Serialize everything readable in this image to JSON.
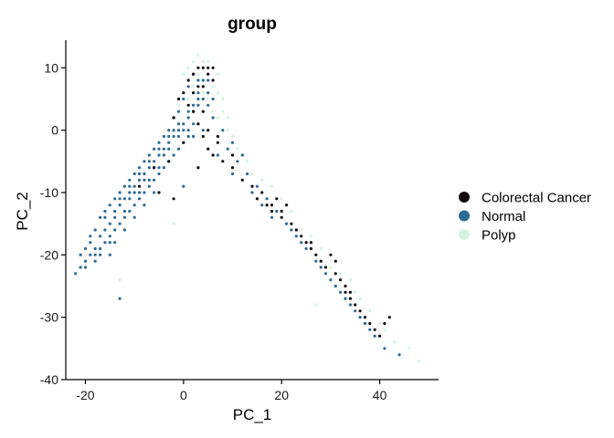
{
  "chart_data": {
    "type": "scatter",
    "title": "group",
    "xlabel": "PC_1",
    "ylabel": "PC_2",
    "xlim": [
      -24,
      52
    ],
    "ylim": [
      -40,
      14
    ],
    "x_ticks": [
      -20,
      0,
      20,
      40
    ],
    "y_ticks": [
      10,
      0,
      -10,
      -20,
      -30,
      -40
    ],
    "grid": false,
    "legend_position": "right",
    "series": [
      {
        "name": "Colorectal Cancer",
        "color": "#140b0e",
        "points": [
          [
            1,
            8
          ],
          [
            2,
            9
          ],
          [
            3,
            10
          ],
          [
            4,
            10
          ],
          [
            5,
            9
          ],
          [
            6,
            8
          ],
          [
            3,
            7
          ],
          [
            0,
            6
          ],
          [
            -1,
            5
          ],
          [
            2,
            6
          ],
          [
            4,
            7
          ],
          [
            5,
            10
          ],
          [
            6,
            10
          ],
          [
            1,
            4
          ],
          [
            2,
            3
          ],
          [
            -2,
            2
          ],
          [
            3,
            1
          ],
          [
            4,
            -1
          ],
          [
            5,
            -3
          ],
          [
            6,
            -4
          ],
          [
            7,
            -2
          ],
          [
            8,
            -5
          ],
          [
            10,
            -6
          ],
          [
            12,
            -8
          ],
          [
            14,
            -9
          ],
          [
            16,
            -10
          ],
          [
            17,
            -12
          ],
          [
            18,
            -13
          ],
          [
            19,
            -11
          ],
          [
            20,
            -14
          ],
          [
            21,
            -12
          ],
          [
            22,
            -15
          ],
          [
            23,
            -16
          ],
          [
            24,
            -17
          ],
          [
            25,
            -18
          ],
          [
            26,
            -19
          ],
          [
            27,
            -20
          ],
          [
            28,
            -21
          ],
          [
            29,
            -22
          ],
          [
            30,
            -20
          ],
          [
            31,
            -23
          ],
          [
            32,
            -24
          ],
          [
            33,
            -25
          ],
          [
            34,
            -26
          ],
          [
            35,
            -28
          ],
          [
            36,
            -29
          ],
          [
            37,
            -30
          ],
          [
            38,
            -31
          ],
          [
            39,
            -32
          ],
          [
            40,
            -33
          ],
          [
            41,
            -31
          ],
          [
            42,
            -30
          ],
          [
            0,
            -2
          ],
          [
            -3,
            -5
          ],
          [
            -6,
            -6
          ],
          [
            -9,
            -9
          ],
          [
            -5,
            -10
          ],
          [
            -2,
            -11
          ],
          [
            3,
            -6
          ],
          [
            15,
            -11
          ],
          [
            18,
            -12
          ],
          [
            20,
            -13
          ],
          [
            33,
            -26
          ],
          [
            34,
            -27
          ],
          [
            31,
            -21
          ],
          [
            26,
            -18
          ],
          [
            10,
            -4
          ],
          [
            7,
            -1
          ],
          [
            5,
            0
          ],
          [
            4,
            3
          ]
        ]
      },
      {
        "name": "Normal",
        "color": "#2b6b94",
        "points": [
          [
            -22,
            -23
          ],
          [
            -21,
            -22
          ],
          [
            -20,
            -21
          ],
          [
            -19,
            -20
          ],
          [
            -18,
            -19
          ],
          [
            -17,
            -17
          ],
          [
            -16,
            -16
          ],
          [
            -15,
            -15
          ],
          [
            -14,
            -13
          ],
          [
            -13,
            -12
          ],
          [
            -12,
            -11
          ],
          [
            -11,
            -10
          ],
          [
            -10,
            -9
          ],
          [
            -9,
            -8
          ],
          [
            -8,
            -7
          ],
          [
            -7,
            -6
          ],
          [
            -6,
            -5
          ],
          [
            -5,
            -4
          ],
          [
            -4,
            -3
          ],
          [
            -3,
            -2
          ],
          [
            -2,
            -1
          ],
          [
            -1,
            0
          ],
          [
            0,
            1
          ],
          [
            1,
            2
          ],
          [
            2,
            3
          ],
          [
            3,
            4
          ],
          [
            4,
            5
          ],
          [
            5,
            6
          ],
          [
            4,
            7
          ],
          [
            3,
            8
          ],
          [
            2,
            9
          ],
          [
            1,
            7
          ],
          [
            0,
            5
          ],
          [
            -1,
            3
          ],
          [
            -2,
            2
          ],
          [
            -3,
            0
          ],
          [
            -4,
            -1
          ],
          [
            -5,
            -2
          ],
          [
            -6,
            -3
          ],
          [
            -7,
            -4
          ],
          [
            -8,
            -5
          ],
          [
            -9,
            -6
          ],
          [
            -10,
            -7
          ],
          [
            -11,
            -8
          ],
          [
            -12,
            -9
          ],
          [
            -13,
            -10
          ],
          [
            -14,
            -11
          ],
          [
            -15,
            -12
          ],
          [
            -16,
            -13
          ],
          [
            -17,
            -14
          ],
          [
            -18,
            -16
          ],
          [
            -19,
            -18
          ],
          [
            -20,
            -19
          ],
          [
            -21,
            -20
          ],
          [
            -16,
            -18
          ],
          [
            -14,
            -16
          ],
          [
            -12,
            -14
          ],
          [
            -10,
            -12
          ],
          [
            -8,
            -10
          ],
          [
            -6,
            -8
          ],
          [
            -4,
            -6
          ],
          [
            -2,
            -4
          ],
          [
            0,
            -2
          ],
          [
            2,
            -1
          ],
          [
            4,
            0
          ],
          [
            -15,
            -17
          ],
          [
            -13,
            -15
          ],
          [
            -11,
            -13
          ],
          [
            -9,
            -11
          ],
          [
            -7,
            -9
          ],
          [
            -5,
            -7
          ],
          [
            -3,
            -5
          ],
          [
            -1,
            -3
          ],
          [
            1,
            -1
          ],
          [
            3,
            1
          ],
          [
            -18,
            -20
          ],
          [
            -17,
            -19
          ],
          [
            -15,
            -20
          ],
          [
            -14,
            -18
          ],
          [
            -12,
            -16
          ],
          [
            -10,
            -14
          ],
          [
            -8,
            -12
          ],
          [
            -6,
            -10
          ],
          [
            -13,
            -27
          ],
          [
            0,
            -9
          ],
          [
            7,
            -4
          ],
          [
            9,
            -3
          ],
          [
            11,
            -5
          ],
          [
            13,
            -7
          ],
          [
            15,
            -9
          ],
          [
            17,
            -11
          ],
          [
            19,
            -13
          ],
          [
            21,
            -15
          ],
          [
            23,
            -17
          ],
          [
            25,
            -19
          ],
          [
            27,
            -21
          ],
          [
            29,
            -23
          ],
          [
            31,
            -25
          ],
          [
            33,
            -27
          ],
          [
            35,
            -29
          ],
          [
            37,
            -31
          ],
          [
            39,
            -33
          ],
          [
            41,
            -35
          ],
          [
            44,
            -36
          ],
          [
            6,
            2
          ],
          [
            8,
            0
          ],
          [
            10,
            -2
          ],
          [
            12,
            -4
          ],
          [
            -19,
            -17
          ],
          [
            -16,
            -14
          ],
          [
            -13,
            -11
          ],
          [
            -11,
            -9
          ],
          [
            -9,
            -7
          ],
          [
            -7,
            -5
          ],
          [
            -5,
            -3
          ],
          [
            -3,
            -1
          ],
          [
            -1,
            1
          ],
          [
            1,
            3
          ],
          [
            3,
            5
          ],
          [
            -20,
            -22
          ],
          [
            -18,
            -21
          ],
          [
            -17,
            -20
          ],
          [
            -15,
            -18
          ],
          [
            -14,
            -14
          ],
          [
            -12,
            -13
          ],
          [
            -10,
            -10
          ],
          [
            -8,
            -8
          ],
          [
            -6,
            -6
          ],
          [
            -4,
            -4
          ],
          [
            -2,
            0
          ],
          [
            0,
            0
          ],
          [
            2,
            1
          ],
          [
            5,
            4
          ],
          [
            6,
            5
          ],
          [
            -11,
            -11
          ],
          [
            -9,
            -10
          ],
          [
            -7,
            -8
          ],
          [
            -5,
            -6
          ],
          [
            -3,
            -3
          ],
          [
            -1,
            -1
          ],
          [
            1,
            0
          ],
          [
            2,
            4
          ],
          [
            3,
            6
          ],
          [
            4,
            8
          ],
          [
            5,
            8
          ],
          [
            16,
            -12
          ],
          [
            22,
            -16
          ],
          [
            28,
            -22
          ],
          [
            32,
            -26
          ],
          [
            36,
            -30
          ],
          [
            10,
            -7
          ],
          [
            14,
            -10
          ],
          [
            18,
            -14
          ],
          [
            24,
            -18
          ],
          [
            30,
            -24
          ],
          [
            34,
            -28
          ],
          [
            38,
            -32
          ]
        ]
      },
      {
        "name": "Polyp",
        "color": "#d6f2df",
        "points": [
          [
            2,
            11
          ],
          [
            3,
            12
          ],
          [
            4,
            11
          ],
          [
            5,
            11
          ],
          [
            6,
            10
          ],
          [
            7,
            9
          ],
          [
            1,
            10
          ],
          [
            0,
            9
          ],
          [
            6,
            7
          ],
          [
            7,
            6
          ],
          [
            8,
            5
          ],
          [
            8,
            3
          ],
          [
            7,
            2
          ],
          [
            9,
            0
          ],
          [
            10,
            -1
          ],
          [
            11,
            -3
          ],
          [
            12,
            -4
          ],
          [
            14,
            -7
          ],
          [
            16,
            -8
          ],
          [
            20,
            -11
          ],
          [
            24,
            -16
          ],
          [
            28,
            -19
          ],
          [
            30,
            -22
          ],
          [
            32,
            -23
          ],
          [
            35,
            -26
          ],
          [
            38,
            -29
          ],
          [
            40,
            -31
          ],
          [
            43,
            -34
          ],
          [
            46,
            -35
          ],
          [
            48,
            -37
          ],
          [
            27,
            -28
          ],
          [
            -2,
            -15
          ],
          [
            -13,
            -24
          ],
          [
            3,
            9
          ],
          [
            4,
            6
          ],
          [
            5,
            5
          ],
          [
            2,
            7
          ],
          [
            1,
            5
          ],
          [
            -1,
            4
          ],
          [
            6,
            3
          ],
          [
            9,
            2
          ],
          [
            13,
            -5
          ],
          [
            18,
            -9
          ],
          [
            22,
            -13
          ],
          [
            26,
            -17
          ],
          [
            34,
            -24
          ],
          [
            36,
            -27
          ],
          [
            41,
            -32
          ]
        ]
      }
    ]
  }
}
